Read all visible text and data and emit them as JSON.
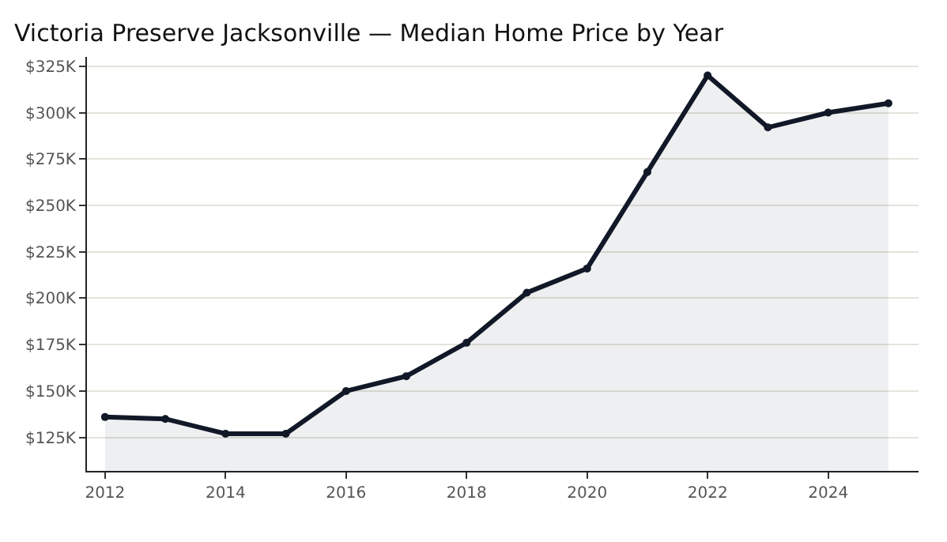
{
  "chart_data": {
    "type": "area",
    "title": "Victoria Preserve Jacksonville — Median Home Price by Year",
    "x": [
      2012,
      2013,
      2014,
      2015,
      2016,
      2017,
      2018,
      2019,
      2020,
      2021,
      2022,
      2023,
      2024,
      2025
    ],
    "series": [
      {
        "color": "#111827",
        "values": [
          136,
          135,
          127,
          127,
          150,
          158,
          176,
          203,
          216,
          268,
          320,
          292,
          300,
          305
        ]
      }
    ],
    "xlim": [
      2011.7,
      2025.5
    ],
    "xticks": [
      2012,
      2014,
      2016,
      2018,
      2020,
      2022,
      2024
    ],
    "ylim": [
      107,
      330
    ],
    "yticks": [
      {
        "value": 125,
        "label": "$125K"
      },
      {
        "value": 150,
        "label": "$150K"
      },
      {
        "value": 175,
        "label": "$175K"
      },
      {
        "value": 200,
        "label": "$200K"
      },
      {
        "value": 225,
        "label": "$225K"
      },
      {
        "value": 250,
        "label": "$250K"
      },
      {
        "value": 275,
        "label": "$275K"
      },
      {
        "value": 300,
        "label": "$300K"
      },
      {
        "value": 325,
        "label": "$325K"
      }
    ],
    "grid": "y",
    "marker": "circle",
    "line_style": "solid",
    "legend": false
  }
}
